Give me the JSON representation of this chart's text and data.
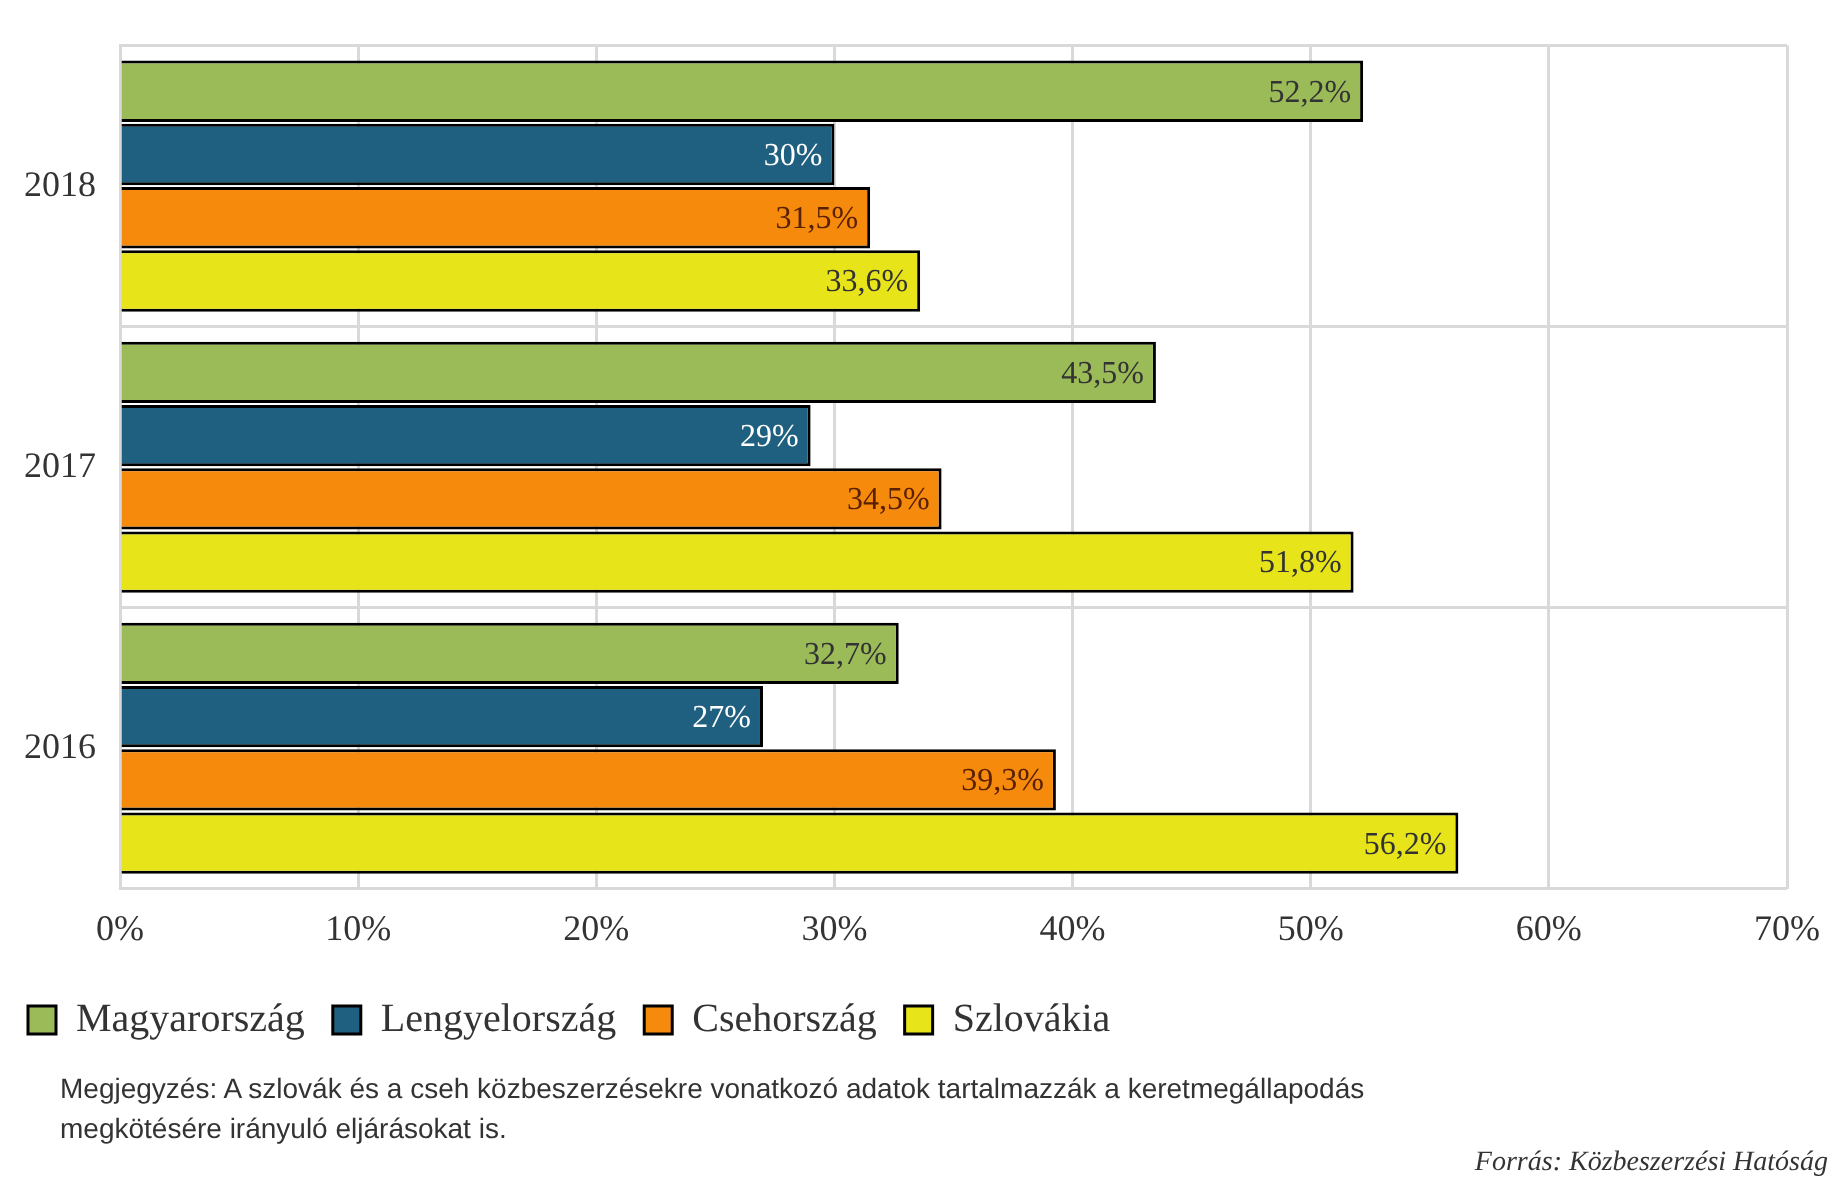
{
  "chart_data": {
    "type": "bar",
    "orientation": "horizontal",
    "categories": [
      "2018",
      "2017",
      "2016"
    ],
    "series": [
      {
        "name": "Magyarország",
        "color": "#9bbb59",
        "values": [
          52.2,
          43.5,
          32.7
        ],
        "value_labels": [
          "52,2%",
          "43,5%",
          "32,7%"
        ]
      },
      {
        "name": "Lengyelország",
        "color": "#1f5f7f",
        "values": [
          30,
          29,
          27
        ],
        "value_labels": [
          "30%",
          "29%",
          "27%"
        ]
      },
      {
        "name": "Csehország",
        "color": "#f58a0c",
        "values": [
          31.5,
          34.5,
          39.3
        ],
        "value_labels": [
          "31,5%",
          "34,5%",
          "39,3%"
        ]
      },
      {
        "name": "Szlovákia",
        "color": "#e8e41a",
        "values": [
          33.6,
          51.8,
          56.2
        ],
        "value_labels": [
          "33,6%",
          "51,8%",
          "56,2%"
        ]
      }
    ],
    "xlim": [
      0,
      70
    ],
    "xticks": [
      {
        "value": 0,
        "label": "0%"
      },
      {
        "value": 10,
        "label": "10%"
      },
      {
        "value": 20,
        "label": "20%"
      },
      {
        "value": 30,
        "label": "30%"
      },
      {
        "value": 40,
        "label": "40%"
      },
      {
        "value": 50,
        "label": "50%"
      },
      {
        "value": 60,
        "label": "60%"
      },
      {
        "value": 70,
        "label": "70%"
      }
    ],
    "grid": true,
    "legend": "bottom left",
    "annotations": [
      "Megjegyzés: A szlovák és a cseh közbeszerzésekre vonatkozó adatok tartalmazzák a keretmegállapodás megkötésére irányuló eljárásokat is.",
      "Forrás: Közbeszerzési Hatóság"
    ]
  }
}
